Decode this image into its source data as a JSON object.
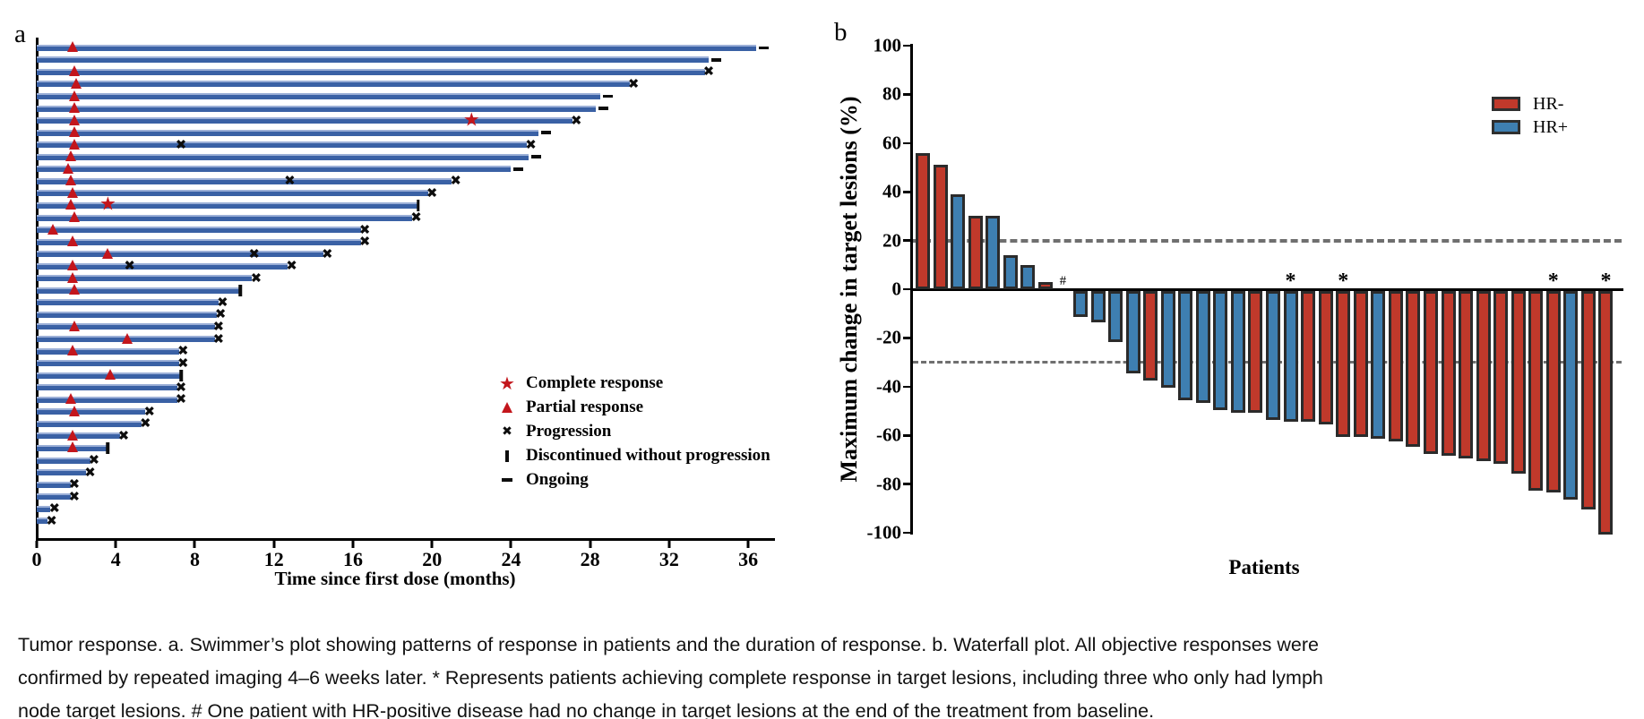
{
  "caption_lines": [
    "Tumor response. a. Swimmer’s plot showing patterns of response in patients and the duration of response. b. Waterfall plot. All objective responses were",
    "confirmed by repeated imaging 4–6 weeks later. * Represents patients achieving complete response in target lesions, including three who only had lymph",
    "node target lesions. # One patient with HR-positive disease had no change in target lesions at the end of the treatment from baseline."
  ],
  "chart_data": [
    {
      "id": "swimmer",
      "type": "bar",
      "panel_label": "a",
      "xlabel": "Time since first dose (months)",
      "xlim": [
        0,
        37.5
      ],
      "x_ticks": [
        0,
        4,
        8,
        12,
        16,
        20,
        24,
        28,
        32,
        36
      ],
      "bar_color": "#3a61a5",
      "response_marker_color": "#c3161c",
      "event_marker_color": "#0d0d0d",
      "legend": [
        {
          "symbol": "star",
          "label": "Complete response"
        },
        {
          "symbol": "triangle",
          "label": "Partial response"
        },
        {
          "symbol": "x",
          "label": "Progression"
        },
        {
          "symbol": "bar",
          "label": "Discontinued without progression"
        },
        {
          "symbol": "dash",
          "label": "Ongoing"
        }
      ],
      "patients": [
        {
          "dur": 36.4,
          "pr": [
            1.8
          ],
          "ongoing": true
        },
        {
          "dur": 34.0,
          "ongoing": true
        },
        {
          "dur": 33.8,
          "pr": [
            1.9
          ],
          "prog": [
            34.0
          ]
        },
        {
          "dur": 30.0,
          "pr": [
            2.0
          ],
          "prog": [
            30.2
          ]
        },
        {
          "dur": 28.5,
          "pr": [
            1.9
          ],
          "ongoing": true
        },
        {
          "dur": 28.3,
          "pr": [
            1.9
          ],
          "ongoing": true
        },
        {
          "dur": 27.1,
          "pr": [
            1.9
          ],
          "cr": [
            22.0
          ],
          "prog": [
            27.3
          ]
        },
        {
          "dur": 25.4,
          "pr": [
            1.9
          ],
          "ongoing": true
        },
        {
          "dur": 24.8,
          "pr": [
            1.9
          ],
          "prog": [
            7.3,
            25.0
          ]
        },
        {
          "dur": 24.9,
          "pr": [
            1.7
          ],
          "ongoing": true
        },
        {
          "dur": 24.0,
          "pr": [
            1.6
          ],
          "ongoing": true
        },
        {
          "dur": 21.0,
          "pr": [
            1.7
          ],
          "prog": [
            12.8,
            21.2
          ]
        },
        {
          "dur": 19.8,
          "pr": [
            1.8
          ],
          "prog": [
            20.0
          ]
        },
        {
          "dur": 19.3,
          "pr": [
            1.7
          ],
          "cr": [
            3.6
          ],
          "disc": true
        },
        {
          "dur": 19.0,
          "pr": [
            1.9
          ],
          "prog": [
            19.2
          ]
        },
        {
          "dur": 16.4,
          "pr": [
            0.8
          ],
          "prog": [
            16.6
          ]
        },
        {
          "dur": 16.4,
          "pr": [
            1.8
          ],
          "prog": [
            16.6
          ]
        },
        {
          "dur": 14.5,
          "pr": [
            3.6
          ],
          "prog": [
            11.0,
            14.7
          ]
        },
        {
          "dur": 12.7,
          "pr": [
            1.8
          ],
          "prog": [
            4.7,
            12.9
          ]
        },
        {
          "dur": 10.9,
          "pr": [
            1.8
          ],
          "prog": [
            11.1
          ]
        },
        {
          "dur": 10.3,
          "pr": [
            1.9
          ],
          "disc": true
        },
        {
          "dur": 9.2,
          "prog": [
            9.4
          ]
        },
        {
          "dur": 9.1,
          "prog": [
            9.3
          ]
        },
        {
          "dur": 9.0,
          "pr": [
            1.9
          ],
          "prog": [
            9.2
          ]
        },
        {
          "dur": 9.0,
          "pr": [
            4.6
          ],
          "prog": [
            9.2
          ]
        },
        {
          "dur": 7.2,
          "pr": [
            1.8
          ],
          "prog": [
            7.4
          ]
        },
        {
          "dur": 7.2,
          "prog": [
            7.4
          ]
        },
        {
          "dur": 7.3,
          "pr": [
            3.7
          ],
          "disc": true
        },
        {
          "dur": 7.1,
          "prog": [
            7.3
          ]
        },
        {
          "dur": 7.1,
          "pr": [
            1.7
          ],
          "prog": [
            7.3
          ]
        },
        {
          "dur": 5.5,
          "pr": [
            1.9
          ],
          "prog": [
            5.7
          ]
        },
        {
          "dur": 5.3,
          "prog": [
            5.5
          ]
        },
        {
          "dur": 4.2,
          "pr": [
            1.8
          ],
          "prog": [
            4.4
          ]
        },
        {
          "dur": 3.6,
          "pr": [
            1.8
          ],
          "disc": true
        },
        {
          "dur": 2.7,
          "prog": [
            2.9
          ]
        },
        {
          "dur": 2.5,
          "prog": [
            2.7
          ]
        },
        {
          "dur": 1.7,
          "prog": [
            1.9
          ]
        },
        {
          "dur": 1.7,
          "prog": [
            1.9
          ]
        },
        {
          "dur": 0.7,
          "prog": [
            0.9
          ]
        },
        {
          "dur": 0.55,
          "prog": [
            0.75
          ]
        }
      ]
    },
    {
      "id": "waterfall",
      "type": "bar",
      "panel_label": "b",
      "xlabel": "Patients",
      "ylabel": "Maximum change in target lesions (%)",
      "ylim": [
        -100,
        100
      ],
      "y_ticks": [
        100,
        80,
        60,
        40,
        20,
        0,
        -20,
        -40,
        -60,
        -80,
        -100
      ],
      "ref_lines": [
        20,
        -30
      ],
      "grid": false,
      "legend_position": "upper-right",
      "groups": [
        {
          "name": "HR-",
          "color": "#c0392b"
        },
        {
          "name": "HR+",
          "color": "#3e7fb1"
        }
      ],
      "patients": [
        {
          "value": 56,
          "group": "HR-"
        },
        {
          "value": 51,
          "group": "HR-"
        },
        {
          "value": 39,
          "group": "HR+"
        },
        {
          "value": 30,
          "group": "HR-"
        },
        {
          "value": 30,
          "group": "HR+"
        },
        {
          "value": 14,
          "group": "HR+"
        },
        {
          "value": 10,
          "group": "HR+"
        },
        {
          "value": 3,
          "group": "HR-"
        },
        {
          "value": 0,
          "group": "HR+",
          "note": "#"
        },
        {
          "value": -11,
          "group": "HR+"
        },
        {
          "value": -13,
          "group": "HR+"
        },
        {
          "value": -21,
          "group": "HR+"
        },
        {
          "value": -34,
          "group": "HR+"
        },
        {
          "value": -37,
          "group": "HR-"
        },
        {
          "value": -40,
          "group": "HR+"
        },
        {
          "value": -45,
          "group": "HR+"
        },
        {
          "value": -46,
          "group": "HR+"
        },
        {
          "value": -49,
          "group": "HR+"
        },
        {
          "value": -50,
          "group": "HR+"
        },
        {
          "value": -50,
          "group": "HR-"
        },
        {
          "value": -53,
          "group": "HR+"
        },
        {
          "value": -54,
          "group": "HR+",
          "note": "*"
        },
        {
          "value": -54,
          "group": "HR-"
        },
        {
          "value": -55,
          "group": "HR-"
        },
        {
          "value": -60,
          "group": "HR-",
          "note": "*"
        },
        {
          "value": -60,
          "group": "HR-"
        },
        {
          "value": -61,
          "group": "HR+"
        },
        {
          "value": -62,
          "group": "HR-"
        },
        {
          "value": -64,
          "group": "HR-"
        },
        {
          "value": -67,
          "group": "HR-"
        },
        {
          "value": -68,
          "group": "HR-"
        },
        {
          "value": -69,
          "group": "HR-"
        },
        {
          "value": -70,
          "group": "HR-"
        },
        {
          "value": -71,
          "group": "HR-"
        },
        {
          "value": -75,
          "group": "HR-"
        },
        {
          "value": -82,
          "group": "HR-"
        },
        {
          "value": -83,
          "group": "HR-",
          "note": "*"
        },
        {
          "value": -86,
          "group": "HR+"
        },
        {
          "value": -90,
          "group": "HR-"
        },
        {
          "value": -100,
          "group": "HR-",
          "note": "*"
        }
      ]
    }
  ]
}
